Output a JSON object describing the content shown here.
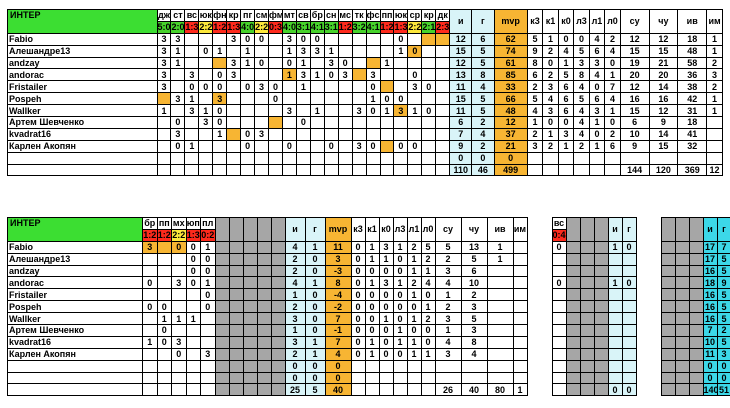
{
  "team": "ИНТЕР",
  "top": {
    "opponents": [
      "дж",
      "ст",
      "вс",
      "юк",
      "фн",
      "кр",
      "пг",
      "см",
      "фм",
      "мт",
      "св",
      "бр",
      "сн",
      "мс",
      "тк",
      "фс",
      "пп",
      "юк",
      "ср",
      "кр",
      "дк"
    ],
    "scores": [
      "5:0",
      "2:0",
      "1:3",
      "2:2",
      "1:2",
      "1:3",
      "4:0",
      "2:2",
      "0:3",
      "4:0",
      "3:1",
      "4:1",
      "3:1",
      "1:2",
      "3:2",
      "4:1",
      "1:2",
      "1:3",
      "2:2",
      "2:1",
      "2:3"
    ],
    "score_colors": [
      "g",
      "g",
      "r",
      "y",
      "r",
      "r",
      "g",
      "y",
      "r",
      "g",
      "g",
      "g",
      "g",
      "r",
      "g",
      "g",
      "r",
      "r",
      "y",
      "g",
      "r"
    ],
    "stat_headers": [
      "и",
      "г",
      "mvp",
      "к3",
      "к1",
      "к0",
      "л3",
      "л1",
      "л0",
      "су",
      "чу",
      "ив",
      "им"
    ],
    "players": [
      {
        "name": "Fabio",
        "games": [
          "3",
          "3",
          "",
          "",
          "",
          "3",
          "0",
          "0",
          "",
          "3",
          "0",
          "0",
          "",
          "",
          "",
          "",
          "",
          "0",
          "",
          "",
          ""
        ],
        "stats": [
          "12",
          "6",
          "62",
          "5",
          "1",
          "0",
          "0",
          "4",
          "2",
          "12",
          "12",
          "18",
          "1"
        ]
      },
      {
        "name": "Алешандре13",
        "games": [
          "3",
          "1",
          "",
          "0",
          "1",
          "",
          "1",
          "",
          "",
          "1",
          "3",
          "3",
          "1",
          "",
          "",
          "",
          "",
          "1",
          "0",
          "",
          ""
        ],
        "stats": [
          "15",
          "5",
          "74",
          "9",
          "2",
          "4",
          "5",
          "6",
          "4",
          "15",
          "15",
          "48",
          "1"
        ]
      },
      {
        "name": "andzay",
        "games": [
          "3",
          "1",
          "",
          "",
          "",
          "3",
          "1",
          "0",
          "",
          "0",
          "1",
          "",
          "3",
          "0",
          "",
          "",
          "1",
          "",
          "",
          "",
          ""
        ],
        "stats": [
          "12",
          "5",
          "61",
          "8",
          "0",
          "1",
          "3",
          "3",
          "0",
          "19",
          "21",
          "58",
          "2"
        ]
      },
      {
        "name": "andorac",
        "games": [
          "3",
          "",
          "3",
          "",
          "0",
          "3",
          "",
          "",
          "",
          "1",
          "3",
          "1",
          "0",
          "3",
          "",
          "3",
          "",
          "",
          "0",
          "",
          ""
        ],
        "stats": [
          "13",
          "8",
          "85",
          "6",
          "2",
          "5",
          "8",
          "4",
          "1",
          "20",
          "20",
          "36",
          "3"
        ]
      },
      {
        "name": "Fristailer",
        "games": [
          "3",
          "",
          "0",
          "0",
          "0",
          "",
          "0",
          "3",
          "0",
          "",
          "1",
          "",
          "",
          "",
          "",
          "0",
          "",
          "",
          "3",
          "0",
          ""
        ],
        "stats": [
          "11",
          "4",
          "33",
          "2",
          "3",
          "6",
          "4",
          "0",
          "7",
          "12",
          "14",
          "38",
          "2"
        ]
      },
      {
        "name": "Pospeh",
        "games": [
          "",
          "3",
          "1",
          "",
          "3",
          "",
          "",
          "",
          "0",
          "",
          "",
          "",
          "",
          "",
          "",
          "1",
          "0",
          "0",
          "",
          "",
          ""
        ],
        "stats": [
          "15",
          "5",
          "66",
          "5",
          "4",
          "6",
          "5",
          "6",
          "4",
          "16",
          "16",
          "42",
          "1"
        ]
      },
      {
        "name": "Wallker",
        "games": [
          "1",
          "",
          "3",
          "1",
          "0",
          "",
          "",
          "",
          "",
          "3",
          "",
          "1",
          "",
          "",
          "3",
          "0",
          "1",
          "3",
          "1",
          "0",
          ""
        ],
        "stats": [
          "11",
          "5",
          "48",
          "4",
          "3",
          "6",
          "4",
          "3",
          "1",
          "15",
          "12",
          "31",
          "1"
        ]
      },
      {
        "name": "Артем Шевченко",
        "games": [
          "",
          "0",
          "",
          "3",
          "0",
          "",
          "",
          "",
          "",
          "",
          "0",
          "",
          "",
          "",
          "",
          "",
          "",
          "",
          "",
          "",
          ""
        ],
        "stats": [
          "6",
          "2",
          "12",
          "1",
          "0",
          "0",
          "4",
          "1",
          "0",
          "6",
          "9",
          "18",
          ""
        ]
      },
      {
        "name": "kvadrat16",
        "games": [
          "",
          "3",
          "",
          "",
          "1",
          "",
          "0",
          "3",
          "",
          "",
          "",
          "",
          "",
          "",
          "",
          "",
          "",
          "",
          "",
          "",
          ""
        ],
        "stats": [
          "7",
          "4",
          "37",
          "2",
          "1",
          "3",
          "4",
          "0",
          "2",
          "10",
          "14",
          "41",
          ""
        ]
      },
      {
        "name": "Карлен Акопян",
        "games": [
          "",
          "0",
          "1",
          "",
          "",
          "",
          "0",
          "",
          "",
          "0",
          "",
          "",
          "0",
          "",
          "3",
          "0",
          "",
          "0",
          "0",
          "",
          ""
        ],
        "stats": [
          "9",
          "2",
          "21",
          "3",
          "2",
          "1",
          "2",
          "1",
          "6",
          "9",
          "15",
          "32",
          ""
        ]
      }
    ],
    "highlight": [
      [
        0,
        20
      ],
      [
        0,
        21
      ],
      [
        1,
        19
      ],
      [
        2,
        5
      ],
      [
        2,
        16
      ],
      [
        3,
        10
      ],
      [
        3,
        15
      ],
      [
        4,
        0
      ],
      [
        4,
        17
      ],
      [
        4,
        22
      ],
      [
        5,
        1
      ],
      [
        5,
        5
      ],
      [
        6,
        18
      ],
      [
        7,
        9
      ],
      [
        8,
        6
      ],
      [
        9,
        17
      ]
    ],
    "blank_rows": [
      {
        "stats": [
          "0",
          "0",
          "0",
          "",
          "",
          "",
          "",
          "",
          "",
          "",
          "",
          "",
          ""
        ]
      }
    ],
    "totals": {
      "labels": [
        "110",
        "46",
        "499"
      ],
      "extra": [
        "144",
        "120",
        "369",
        "12"
      ]
    }
  },
  "bottom": {
    "opponents": [
      "бр",
      "пп",
      "мх",
      "юп",
      "пл"
    ],
    "scores": [
      "1:2",
      "1:2",
      "2:2",
      "1:3",
      "0:2"
    ],
    "score_colors": [
      "r",
      "r",
      "y",
      "r",
      "r"
    ],
    "stat_headers": [
      "и",
      "г",
      "mvp",
      "к3",
      "к1",
      "к0",
      "л3",
      "л1",
      "л0",
      "су",
      "чу",
      "ив",
      "им"
    ],
    "side_header": "вс",
    "side_score": "0:4",
    "side_headers": [
      "и",
      "г"
    ],
    "far_headers": [
      "и",
      "г"
    ],
    "players": [
      {
        "name": "Fabio",
        "games": [
          "3",
          "",
          "0",
          "0",
          "1"
        ],
        "stats": [
          "4",
          "1",
          "11",
          "0",
          "1",
          "3",
          "1",
          "2",
          "5",
          "5",
          "13",
          "1",
          ""
        ],
        "side": [
          "0",
          "",
          "1",
          "0"
        ],
        "far": [
          "17",
          "7"
        ]
      },
      {
        "name": "Алешандре13",
        "games": [
          "",
          "",
          "",
          "0",
          "0"
        ],
        "stats": [
          "2",
          "0",
          "3",
          "0",
          "1",
          "1",
          "0",
          "1",
          "2",
          "2",
          "5",
          "1",
          ""
        ],
        "side": [
          "",
          "",
          "",
          ""
        ],
        "far": [
          "17",
          "5"
        ]
      },
      {
        "name": "andzay",
        "games": [
          "",
          "",
          "",
          "0",
          "0"
        ],
        "stats": [
          "2",
          "0",
          "-3",
          "0",
          "0",
          "0",
          "0",
          "1",
          "1",
          "3",
          "6",
          "",
          ""
        ],
        "side": [
          "",
          "",
          "",
          ""
        ],
        "far": [
          "16",
          "5"
        ]
      },
      {
        "name": "andorac",
        "games": [
          "0",
          "",
          "3",
          "0",
          "1"
        ],
        "stats": [
          "4",
          "1",
          "8",
          "0",
          "1",
          "3",
          "1",
          "2",
          "4",
          "4",
          "10",
          "",
          ""
        ],
        "side": [
          "0",
          "",
          "1",
          "0"
        ],
        "far": [
          "18",
          "9"
        ]
      },
      {
        "name": "Fristailer",
        "games": [
          "",
          "",
          "",
          "",
          "0"
        ],
        "stats": [
          "1",
          "0",
          "-4",
          "0",
          "0",
          "0",
          "0",
          "1",
          "0",
          "1",
          "2",
          "",
          ""
        ],
        "side": [
          "",
          "",
          "",
          ""
        ],
        "far": [
          "16",
          "5"
        ]
      },
      {
        "name": "Pospeh",
        "games": [
          "0",
          "0",
          "",
          "",
          "0"
        ],
        "stats": [
          "2",
          "0",
          "-2",
          "0",
          "0",
          "0",
          "0",
          "0",
          "1",
          "2",
          "3",
          "",
          ""
        ],
        "side": [
          "",
          "",
          "",
          ""
        ],
        "far": [
          "16",
          "5"
        ]
      },
      {
        "name": "Wallker",
        "games": [
          "",
          "1",
          "1",
          "1",
          ""
        ],
        "stats": [
          "3",
          "0",
          "7",
          "0",
          "0",
          "1",
          "0",
          "1",
          "2",
          "3",
          "5",
          "",
          ""
        ],
        "side": [
          "",
          "",
          "",
          ""
        ],
        "far": [
          "16",
          "5"
        ]
      },
      {
        "name": "Артем Шевченко",
        "games": [
          "",
          "0",
          "",
          "",
          ""
        ],
        "stats": [
          "1",
          "0",
          "-1",
          "0",
          "0",
          "0",
          "1",
          "0",
          "0",
          "1",
          "3",
          "",
          ""
        ],
        "side": [
          "",
          "",
          "",
          ""
        ],
        "far": [
          "7",
          "2"
        ]
      },
      {
        "name": "kvadrat16",
        "games": [
          "1",
          "0",
          "3",
          "",
          ""
        ],
        "stats": [
          "3",
          "1",
          "7",
          "0",
          "1",
          "0",
          "1",
          "1",
          "0",
          "4",
          "8",
          "",
          ""
        ],
        "side": [
          "",
          "",
          "",
          ""
        ],
        "far": [
          "10",
          "5"
        ]
      },
      {
        "name": "Карлен Акопян",
        "games": [
          "",
          "",
          "0",
          "",
          "3"
        ],
        "stats": [
          "2",
          "1",
          "4",
          "0",
          "1",
          "0",
          "0",
          "1",
          "1",
          "3",
          "4",
          "",
          ""
        ],
        "side": [
          "",
          "",
          "",
          ""
        ],
        "far": [
          "11",
          "3"
        ]
      }
    ],
    "highlight": [
      [
        0,
        0
      ],
      [
        0,
        1
      ],
      [
        0,
        2
      ]
    ],
    "blank_rows": [
      {
        "stats": [
          "0",
          "0",
          "0"
        ],
        "far": [
          "0",
          "0"
        ]
      },
      {
        "stats": [
          "0",
          "0",
          "0"
        ],
        "far": [
          "0",
          "0"
        ]
      }
    ],
    "totals": {
      "labels": [
        "25",
        "5",
        "40"
      ],
      "extra": [
        "26",
        "40",
        "80",
        "1"
      ],
      "side": [
        "0",
        "0"
      ],
      "far": [
        "140",
        "51"
      ]
    }
  }
}
